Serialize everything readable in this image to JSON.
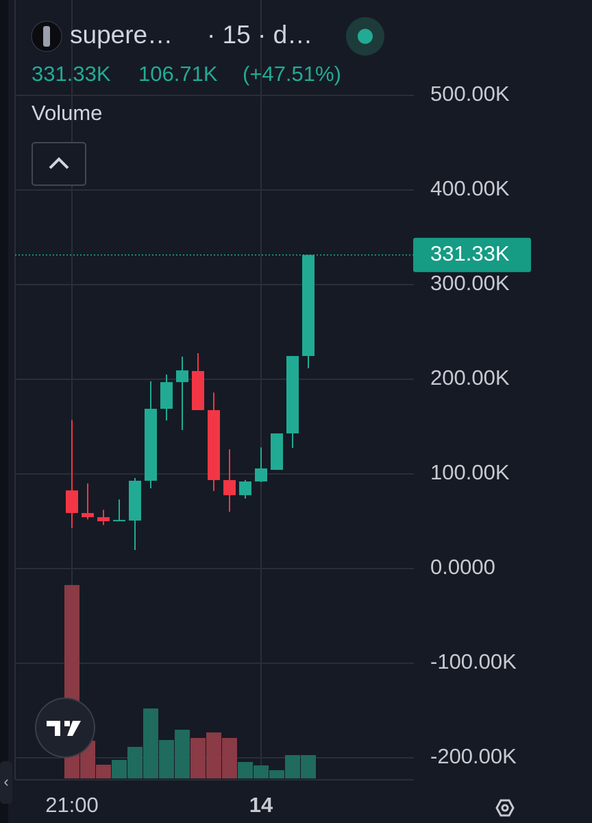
{
  "header": {
    "symbol": "supere…",
    "interval": "· 15 · d…",
    "last": "331.33K",
    "change": "106.71K",
    "change_pct": "(+47.51%)",
    "indicator": "Volume"
  },
  "chart_data": {
    "type": "candlestick",
    "categories": [
      "21:00",
      null,
      null,
      null,
      null,
      null,
      null,
      null,
      null,
      null,
      null,
      null,
      "14",
      null,
      null,
      null
    ],
    "open": [
      82.6,
      58.7,
      54.3,
      50.0,
      50.7,
      92.8,
      168.8,
      197.0,
      208.7,
      167.4,
      93.5,
      77.5,
      92.0,
      104.3,
      142.8,
      224.6
    ],
    "high": [
      157.0,
      90.0,
      62.0,
      73.0,
      95.7,
      197.8,
      205.0,
      224.0,
      227.5,
      186.0,
      126.0,
      93.5,
      128.0,
      142.8,
      224.6,
      331.33
    ],
    "low": [
      42.8,
      52.0,
      46.0,
      50.0,
      19.6,
      84.8,
      156.5,
      146.4,
      167.4,
      82.0,
      60.0,
      74.0,
      91.3,
      104.3,
      127.5,
      211.6
    ],
    "close": [
      58.7,
      54.3,
      50.0,
      51.4,
      92.8,
      168.8,
      197.0,
      209.4,
      167.4,
      93.5,
      77.5,
      92.0,
      105.8,
      142.8,
      224.6,
      331.33
    ],
    "volume": [
      282,
      55,
      20,
      27,
      46,
      102,
      56,
      71,
      59,
      67,
      59,
      24,
      19,
      12,
      34,
      34
    ],
    "up_color": "#22ab94",
    "down_color": "#f23645",
    "up_volume_color": "#1f6b5e",
    "down_volume_color": "#8a3b45",
    "last_price": {
      "value": 331.33,
      "label": "331.33K"
    },
    "ylim": [
      -221.7,
      600.7
    ],
    "yticks": [
      {
        "value": 500,
        "label": "500.00K"
      },
      {
        "value": 400,
        "label": "400.00K"
      },
      {
        "value": 300,
        "label": "300.00K"
      },
      {
        "value": 200,
        "label": "200.00K"
      },
      {
        "value": 100,
        "label": "100.00K"
      },
      {
        "value": 0,
        "label": "0.0000"
      },
      {
        "value": -100,
        "label": "-100.00K"
      },
      {
        "value": -200,
        "label": "-200.00K"
      }
    ],
    "grid": true
  }
}
